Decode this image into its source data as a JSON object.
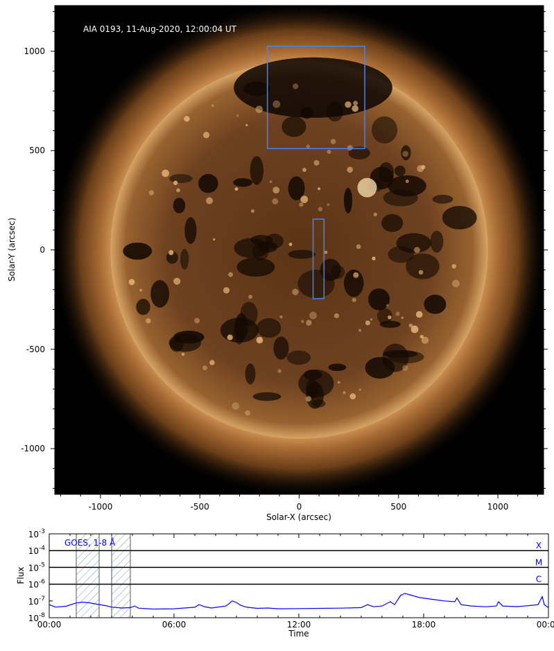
{
  "chart_data": [
    {
      "type": "image",
      "title": "AIA 0193, 11-Aug-2020, 12:00:04 UT",
      "xlabel": "Solar-X (arcsec)",
      "ylabel": "Solar-Y (arcsec)",
      "xlim": [
        -1230,
        1230
      ],
      "ylim": [
        -1230,
        1230
      ],
      "xticks": [
        -1000,
        -500,
        0,
        500,
        1000
      ],
      "yticks": [
        1000,
        500,
        0,
        -500,
        -1000
      ],
      "xtick_labels": [
        "-1000",
        "-500",
        "0",
        "500",
        "1000"
      ],
      "ytick_labels": [
        "1000",
        "500",
        "0",
        "-500",
        "-1000"
      ],
      "solar_radius_arcsec": 950,
      "boxes": [
        {
          "name": "north polar box",
          "x": [
            -160,
            330
          ],
          "y": [
            510,
            1025
          ],
          "color": "#3d86ff"
        },
        {
          "name": "central box",
          "x": [
            70,
            125
          ],
          "y": [
            -245,
            155
          ],
          "color": "#3d86ff"
        }
      ]
    },
    {
      "type": "line",
      "label": "GOES, 1-8 Å",
      "xlabel": "Time",
      "ylabel": "Flux",
      "x_unit": "hours",
      "xlim": [
        0,
        24
      ],
      "yscale": "log",
      "ylim": [
        1e-08,
        0.001
      ],
      "xtick_labels": [
        "00:00",
        "06:00",
        "12:00",
        "18:00",
        "00:00"
      ],
      "xticks": [
        0,
        6,
        12,
        18,
        24
      ],
      "ytick_labels": [
        {
          "base": "10",
          "exp": "-3"
        },
        {
          "base": "10",
          "exp": "-4"
        },
        {
          "base": "10",
          "exp": "-5"
        },
        {
          "base": "10",
          "exp": "-6"
        },
        {
          "base": "10",
          "exp": "-7"
        },
        {
          "base": "10",
          "exp": "-8"
        }
      ],
      "flare_class_lines": [
        {
          "label": "X",
          "flux": 0.0001
        },
        {
          "label": "M",
          "flux": 1e-05
        },
        {
          "label": "C",
          "flux": 1e-06
        }
      ],
      "shaded_intervals": [
        [
          1.3,
          2.4
        ],
        [
          3.0,
          3.9
        ]
      ],
      "series": [
        {
          "color": "#0000ff",
          "x": [
            0,
            0.3,
            0.8,
            1.3,
            1.6,
            1.9,
            2.3,
            2.7,
            3.0,
            3.5,
            3.9,
            4.1,
            4.3,
            5.0,
            6.0,
            7.0,
            7.2,
            7.5,
            7.8,
            8.5,
            8.8,
            9.0,
            9.2,
            9.5,
            10.0,
            10.5,
            11.0,
            12.0,
            13.0,
            14.0,
            15.0,
            15.3,
            15.6,
            16.0,
            16.4,
            16.6,
            16.9,
            17.1,
            17.4,
            17.8,
            18.3,
            19.0,
            19.5,
            19.6,
            19.8,
            20.3,
            21.0,
            21.5,
            21.6,
            21.8,
            22.5,
            23.0,
            23.5,
            23.7,
            23.8,
            24.0
          ],
          "y": [
            6e-08,
            4.3e-08,
            4.8e-08,
            7.6e-08,
            8.5e-08,
            7.8e-08,
            6.4e-08,
            5.3e-08,
            4.3e-08,
            3.8e-08,
            4e-08,
            5e-08,
            3.7e-08,
            3.3e-08,
            3.4e-08,
            4.2e-08,
            6e-08,
            4.4e-08,
            3.8e-08,
            5e-08,
            1e-07,
            8e-08,
            5.5e-08,
            4.2e-08,
            3.6e-08,
            3.8e-08,
            3.4e-08,
            3.5e-08,
            3.6e-08,
            3.7e-08,
            4e-08,
            6e-08,
            4.5e-08,
            5e-08,
            9e-08,
            6e-08,
            2.2e-07,
            2.8e-07,
            2.2e-07,
            1.6e-07,
            1.3e-07,
            1e-07,
            9e-08,
            1.5e-07,
            6e-08,
            5e-08,
            4.5e-08,
            5e-08,
            9e-08,
            5e-08,
            4.6e-08,
            5.2e-08,
            6e-08,
            1.8e-07,
            6e-08,
            4e-08
          ]
        }
      ]
    }
  ]
}
